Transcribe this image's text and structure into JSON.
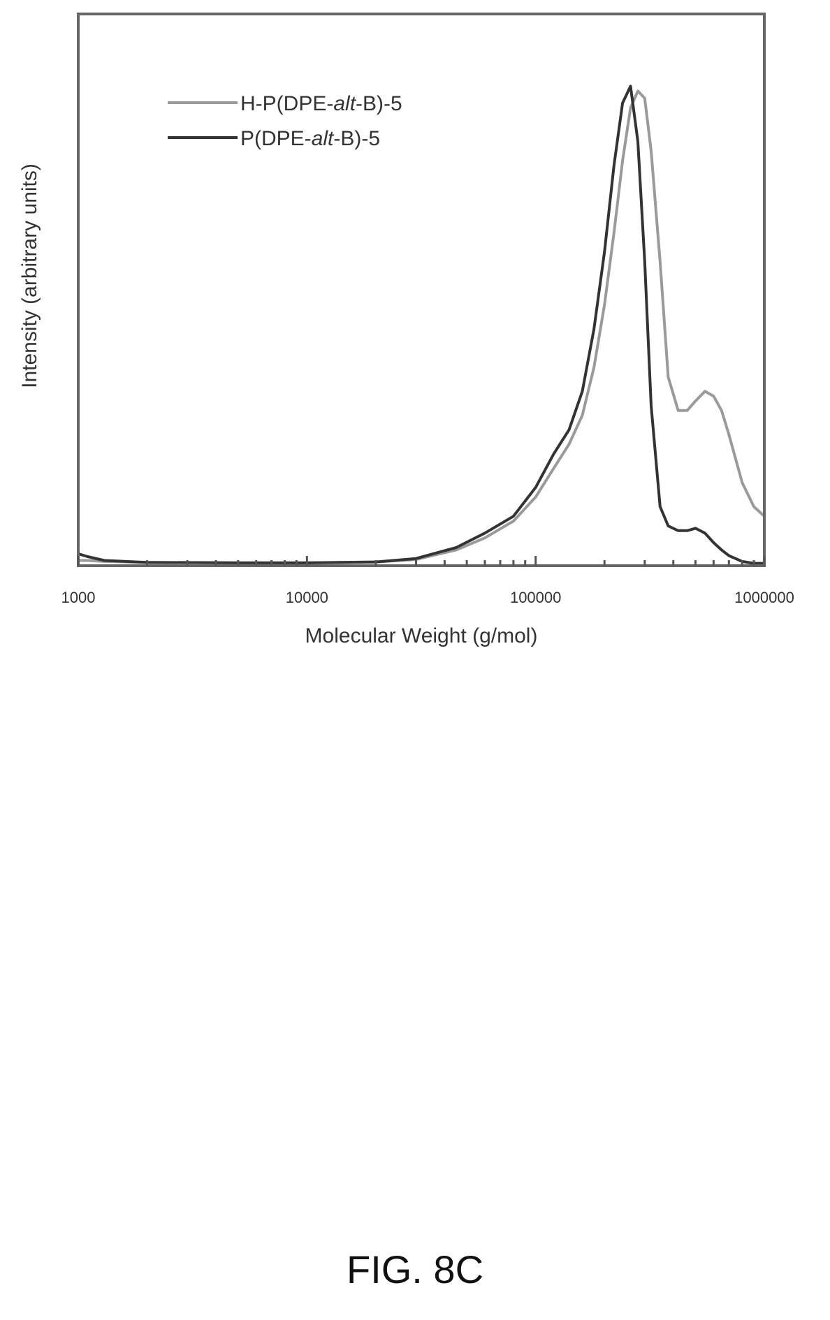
{
  "figure_label": "FIG. 8C",
  "chart_data": {
    "type": "line",
    "xlabel": "Molecular Weight (g/mol)",
    "ylabel": "Intensity (arbitrary units)",
    "x_scale": "log",
    "xlim": [
      1000,
      1000000
    ],
    "ylim": [
      0,
      1
    ],
    "y_ticks_shown": false,
    "x_ticks": [
      {
        "value": 1000,
        "label": "1000"
      },
      {
        "value": 10000,
        "label": "10000"
      },
      {
        "value": 100000,
        "label": "100000"
      },
      {
        "value": 1000000,
        "label": "1000000"
      }
    ],
    "legend_position": "top-left",
    "series": [
      {
        "name": "H-P(DPE-alt-B)-5",
        "name_prefix": "H-P(DPE-",
        "name_italic": "alt",
        "name_suffix": "-B)-5",
        "color": "#9a9a9a",
        "x": [
          1000,
          1100,
          1300,
          2000,
          5000,
          10000,
          20000,
          30000,
          45000,
          60000,
          80000,
          100000,
          120000,
          140000,
          160000,
          180000,
          200000,
          220000,
          240000,
          260000,
          280000,
          300000,
          320000,
          350000,
          380000,
          420000,
          460000,
          500000,
          550000,
          600000,
          650000,
          700000,
          800000,
          900000,
          1000000
        ],
        "y": [
          0.008,
          0.008,
          0.006,
          0.004,
          0.003,
          0.003,
          0.005,
          0.01,
          0.03,
          0.055,
          0.09,
          0.14,
          0.2,
          0.25,
          0.31,
          0.41,
          0.54,
          0.69,
          0.84,
          0.95,
          0.985,
          0.97,
          0.86,
          0.63,
          0.39,
          0.32,
          0.32,
          0.34,
          0.36,
          0.35,
          0.32,
          0.27,
          0.17,
          0.12,
          0.1
        ]
      },
      {
        "name": "P(DPE-alt-B)-5",
        "name_prefix": "P(DPE-",
        "name_italic": "alt",
        "name_suffix": "-B)-5",
        "color": "#333333",
        "x": [
          1000,
          1100,
          1300,
          2000,
          5000,
          10000,
          20000,
          30000,
          45000,
          60000,
          80000,
          100000,
          120000,
          140000,
          160000,
          180000,
          200000,
          220000,
          240000,
          260000,
          280000,
          300000,
          320000,
          350000,
          380000,
          420000,
          460000,
          500000,
          550000,
          600000,
          650000,
          700000,
          800000,
          900000,
          1000000
        ],
        "y": [
          0.022,
          0.016,
          0.008,
          0.004,
          0.003,
          0.003,
          0.005,
          0.012,
          0.035,
          0.065,
          0.1,
          0.16,
          0.23,
          0.28,
          0.36,
          0.49,
          0.65,
          0.83,
          0.96,
          0.995,
          0.88,
          0.63,
          0.33,
          0.12,
          0.08,
          0.07,
          0.07,
          0.075,
          0.065,
          0.045,
          0.03,
          0.018,
          0.006,
          0.002,
          0.002
        ]
      }
    ]
  }
}
